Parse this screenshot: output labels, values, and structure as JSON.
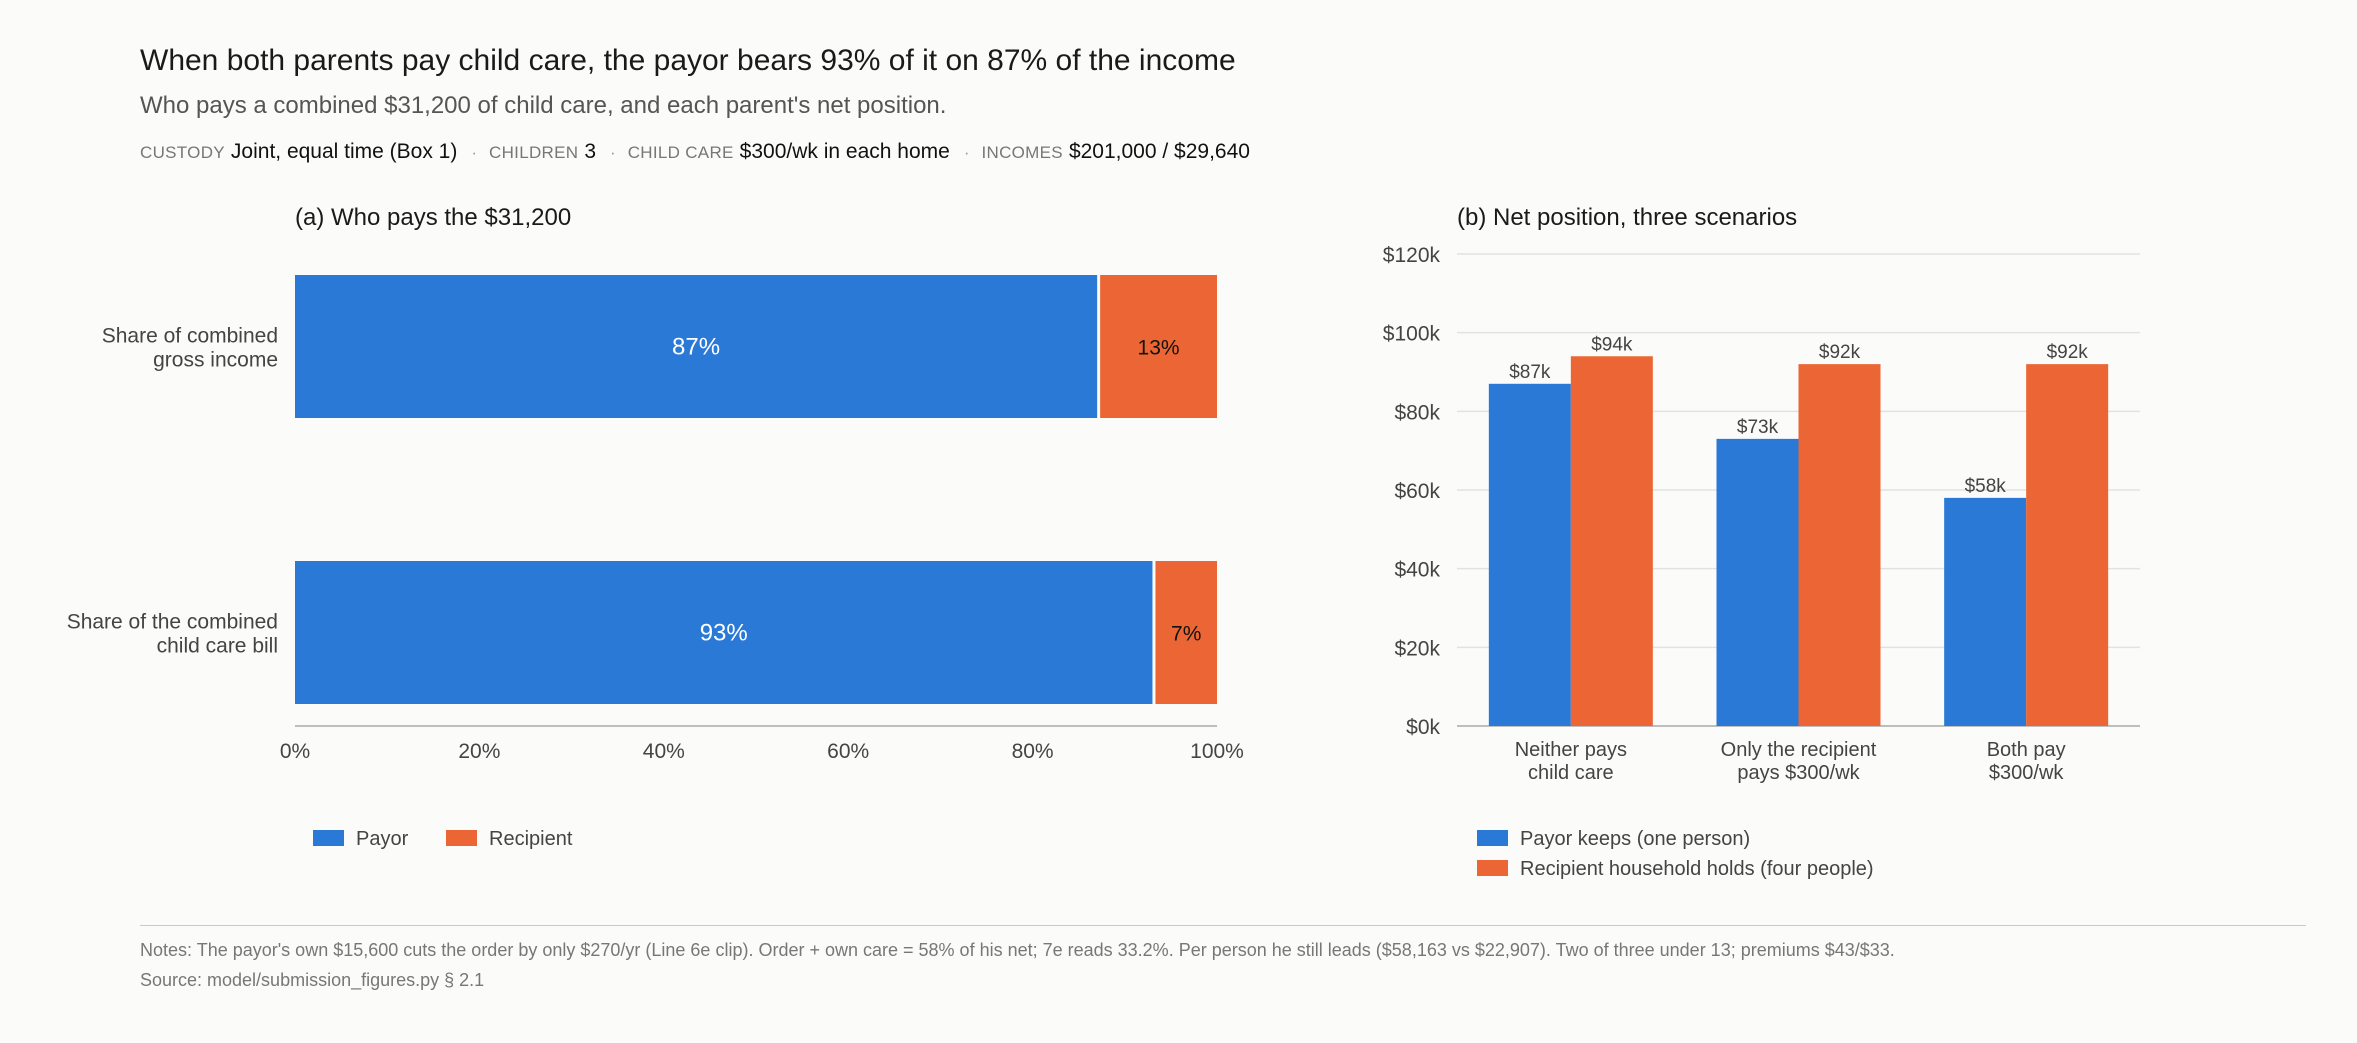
{
  "header": {
    "title": "When both parents pay child care, the payor bears 93% of it on 87% of the income",
    "subtitle": "Who pays a combined $31,200 of child care, and each parent's net position.",
    "meta": [
      {
        "label": "CUSTODY",
        "value": "Joint, equal time (Box 1)"
      },
      {
        "label": "CHILDREN",
        "value": "3"
      },
      {
        "label": "CHILD CARE",
        "value": "$300/wk in each home"
      },
      {
        "label": "INCOMES",
        "value": "$201,000 / $29,640"
      }
    ],
    "separator": "·"
  },
  "chart_data": [
    {
      "type": "bar",
      "orientation": "horizontal",
      "stacked": true,
      "title": "(a) Who pays the $31,200",
      "categories": [
        "Share of combined\ngross income",
        "Share of the combined\nchild care bill"
      ],
      "series": [
        {
          "name": "Payor",
          "values": [
            87,
            93
          ],
          "labels": [
            "87%",
            "93%"
          ],
          "color": "#2a79d7"
        },
        {
          "name": "Recipient",
          "values": [
            13,
            7
          ],
          "labels": [
            "13%",
            "7%"
          ],
          "color": "#eb6634"
        }
      ],
      "xlim": [
        0,
        100
      ],
      "xticks": [
        "0%",
        "20%",
        "40%",
        "60%",
        "80%",
        "100%"
      ],
      "legend_position": "bottom-left"
    },
    {
      "type": "bar",
      "orientation": "vertical",
      "title": "(b) Net position, three scenarios",
      "categories": [
        "Neither pays\nchild care",
        "Only the recipient\npays $300/wk",
        "Both pay\n$300/wk"
      ],
      "series": [
        {
          "name": "Payor keeps (one person)",
          "values": [
            87,
            73,
            58
          ],
          "labels": [
            "$87k",
            "$73k",
            "$58k"
          ],
          "color": "#2a79d7"
        },
        {
          "name": "Recipient household holds (four people)",
          "values": [
            94,
            92,
            92
          ],
          "labels": [
            "$94k",
            "$92k",
            "$92k"
          ],
          "color": "#eb6634"
        }
      ],
      "ylim": [
        0,
        120
      ],
      "yticks": [
        "$0k",
        "$20k",
        "$40k",
        "$60k",
        "$80k",
        "$100k",
        "$120k"
      ],
      "grid": true,
      "legend_position": "bottom-left"
    }
  ],
  "footer": {
    "notes": "Notes: The payor's own $15,600 cuts the order by only $270/yr (Line 6e clip). Order + own care = 58% of his net; 7e reads 33.2%. Per person he still leads ($58,163 vs $22,907). Two of three under 13; premiums $43/$33.",
    "source": "Source: model/submission_figures.py § 2.1"
  }
}
